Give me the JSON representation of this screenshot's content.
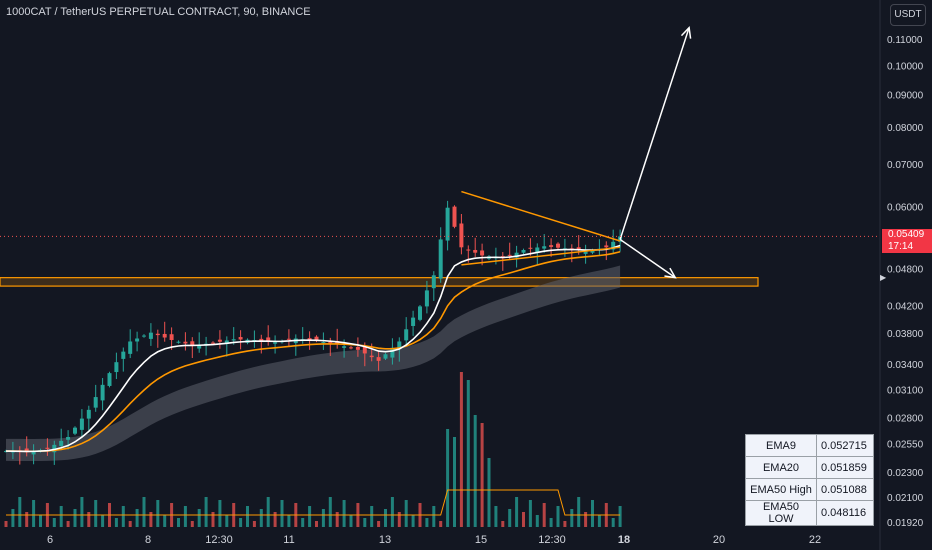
{
  "header": {
    "title": "1000CAT / TetherUS PERPETUAL CONTRACT, 90, BINANCE"
  },
  "currency_button": "USDT",
  "price_tag": {
    "price": "0.05409",
    "countdown": "17:14",
    "color": "#f23645"
  },
  "ema_table": [
    {
      "name": "EMA9",
      "value": "0.052715"
    },
    {
      "name": "EMA20",
      "value": "0.051859"
    },
    {
      "name": "EMA50 High",
      "value": "0.051088"
    },
    {
      "name": "EMA50 LOW",
      "value": "0.048116"
    }
  ],
  "chart_data": {
    "type": "line",
    "title": "1000CAT / TetherUS PERPETUAL CONTRACT, 90, BINANCE",
    "scale": "log",
    "y_ticks": [
      "0.11000",
      "0.10000",
      "0.09000",
      "0.08000",
      "0.07000",
      "0.06000",
      "0.04800",
      "0.04200",
      "0.03800",
      "0.03400",
      "0.03100",
      "0.02800",
      "0.02550",
      "0.02300",
      "0.02100",
      "0.01920"
    ],
    "x_ticks": [
      "6",
      "8",
      "12:30",
      "11",
      "13",
      "15",
      "12:30",
      "18",
      "20",
      "22"
    ],
    "bold_x_ticks": [
      "18"
    ],
    "last_price": 0.05409,
    "indicators": [
      "EMA9",
      "EMA20",
      "EMA50 High",
      "EMA50 LOW"
    ],
    "colors": {
      "up": "#26a69a",
      "down": "#ef5350",
      "ema9": "#ffffff",
      "ema20": "#ff9800",
      "ribbon": "#5d606b",
      "zone": "#ff9800",
      "volume_ma": "#ff9800"
    },
    "close_path": [
      [
        0,
        0.0249
      ],
      [
        3,
        0.0248
      ],
      [
        6,
        0.0251
      ],
      [
        9,
        0.0262
      ],
      [
        12,
        0.0289
      ],
      [
        15,
        0.033
      ],
      [
        18,
        0.037
      ],
      [
        21,
        0.0382
      ],
      [
        24,
        0.0372
      ],
      [
        27,
        0.0365
      ],
      [
        30,
        0.0368
      ],
      [
        33,
        0.0373
      ],
      [
        36,
        0.0372
      ],
      [
        39,
        0.0369
      ],
      [
        42,
        0.0374
      ],
      [
        45,
        0.0371
      ],
      [
        48,
        0.0366
      ],
      [
        51,
        0.0359
      ],
      [
        54,
        0.0345
      ],
      [
        57,
        0.037
      ],
      [
        60,
        0.042
      ],
      [
        62,
        0.047
      ],
      [
        64,
        0.06
      ],
      [
        66,
        0.052
      ],
      [
        69,
        0.0505
      ],
      [
        72,
        0.05
      ],
      [
        75,
        0.0515
      ],
      [
        78,
        0.0522
      ],
      [
        81,
        0.0518
      ],
      [
        84,
        0.0512
      ],
      [
        87,
        0.052
      ],
      [
        89,
        0.05409
      ]
    ],
    "volume_bars": 90,
    "zone": {
      "low": 0.0452,
      "high": 0.0466
    },
    "triangle_upper": [
      [
        66,
        0.0636
      ],
      [
        89,
        0.0532
      ]
    ],
    "triangle_lower": [
      [
        66,
        0.0488
      ],
      [
        89,
        0.052
      ]
    ],
    "arrows": [
      {
        "from": [
          89,
          0.0535
        ],
        "to": [
          99,
          0.115
        ]
      },
      {
        "from": [
          89,
          0.0535
        ],
        "to": [
          97,
          0.0466
        ]
      }
    ]
  }
}
